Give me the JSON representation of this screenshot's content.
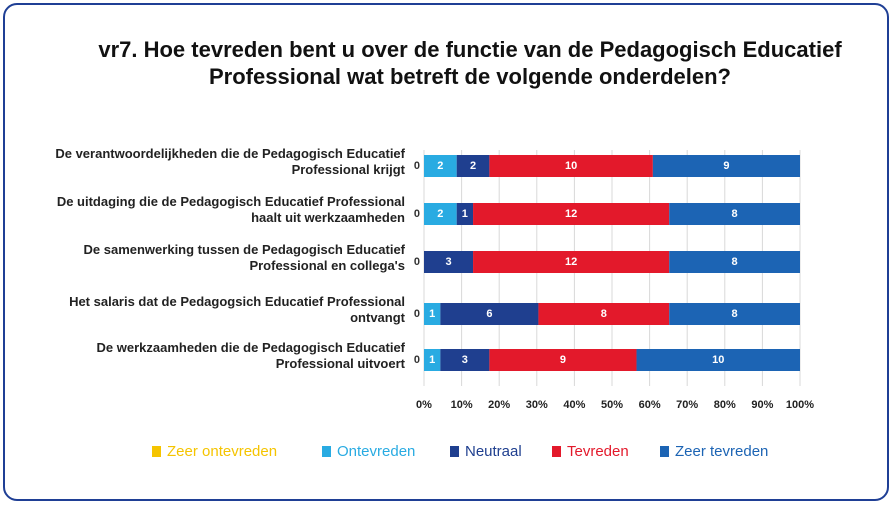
{
  "chart_data": {
    "type": "stacked-bar-100",
    "title": "vr7. Hoe tevreden bent u over de functie van de Pedagogisch Educatief Professional wat betreft de volgende onderdelen?",
    "categories": [
      "De verantwoordelijkheden die de Pedagogisch Educatief Professional krijgt",
      "De uitdaging die de Pedagogisch Educatief Professional haalt uit werkzaamheden",
      "De samenwerking tussen de Pedagogisch Educatief Professional en collega's",
      "Het salaris dat de Pedagogsich Educatief Professional ontvangt",
      "De werkzaamheden die de Pedagogisch Educatief Professional uitvoert"
    ],
    "series": [
      {
        "name": "Zeer ontevreden",
        "color": "#f5c400",
        "values": [
          0,
          0,
          0,
          0,
          0
        ]
      },
      {
        "name": "Ontevreden",
        "color": "#29abe2",
        "values": [
          2,
          2,
          0,
          1,
          1
        ]
      },
      {
        "name": "Neutraal",
        "color": "#1f3f8f",
        "values": [
          2,
          1,
          3,
          6,
          3
        ]
      },
      {
        "name": "Tevreden",
        "color": "#e3192b",
        "values": [
          10,
          12,
          12,
          8,
          9
        ]
      },
      {
        "name": "Zeer tevreden",
        "color": "#1c64b4",
        "values": [
          9,
          8,
          8,
          8,
          10
        ]
      }
    ],
    "xlim": [
      0,
      100
    ],
    "xticks": [
      {
        "value": 0,
        "label": "0%"
      },
      {
        "value": 10,
        "label": "10%"
      },
      {
        "value": 20,
        "label": "20%"
      },
      {
        "value": 30,
        "label": "30%"
      },
      {
        "value": 40,
        "label": "40%"
      },
      {
        "value": 50,
        "label": "50%"
      },
      {
        "value": 60,
        "label": "60%"
      },
      {
        "value": 70,
        "label": "70%"
      },
      {
        "value": 80,
        "label": "80%"
      },
      {
        "value": 90,
        "label": "90%"
      },
      {
        "value": 100,
        "label": "100%"
      }
    ],
    "grid": true
  }
}
